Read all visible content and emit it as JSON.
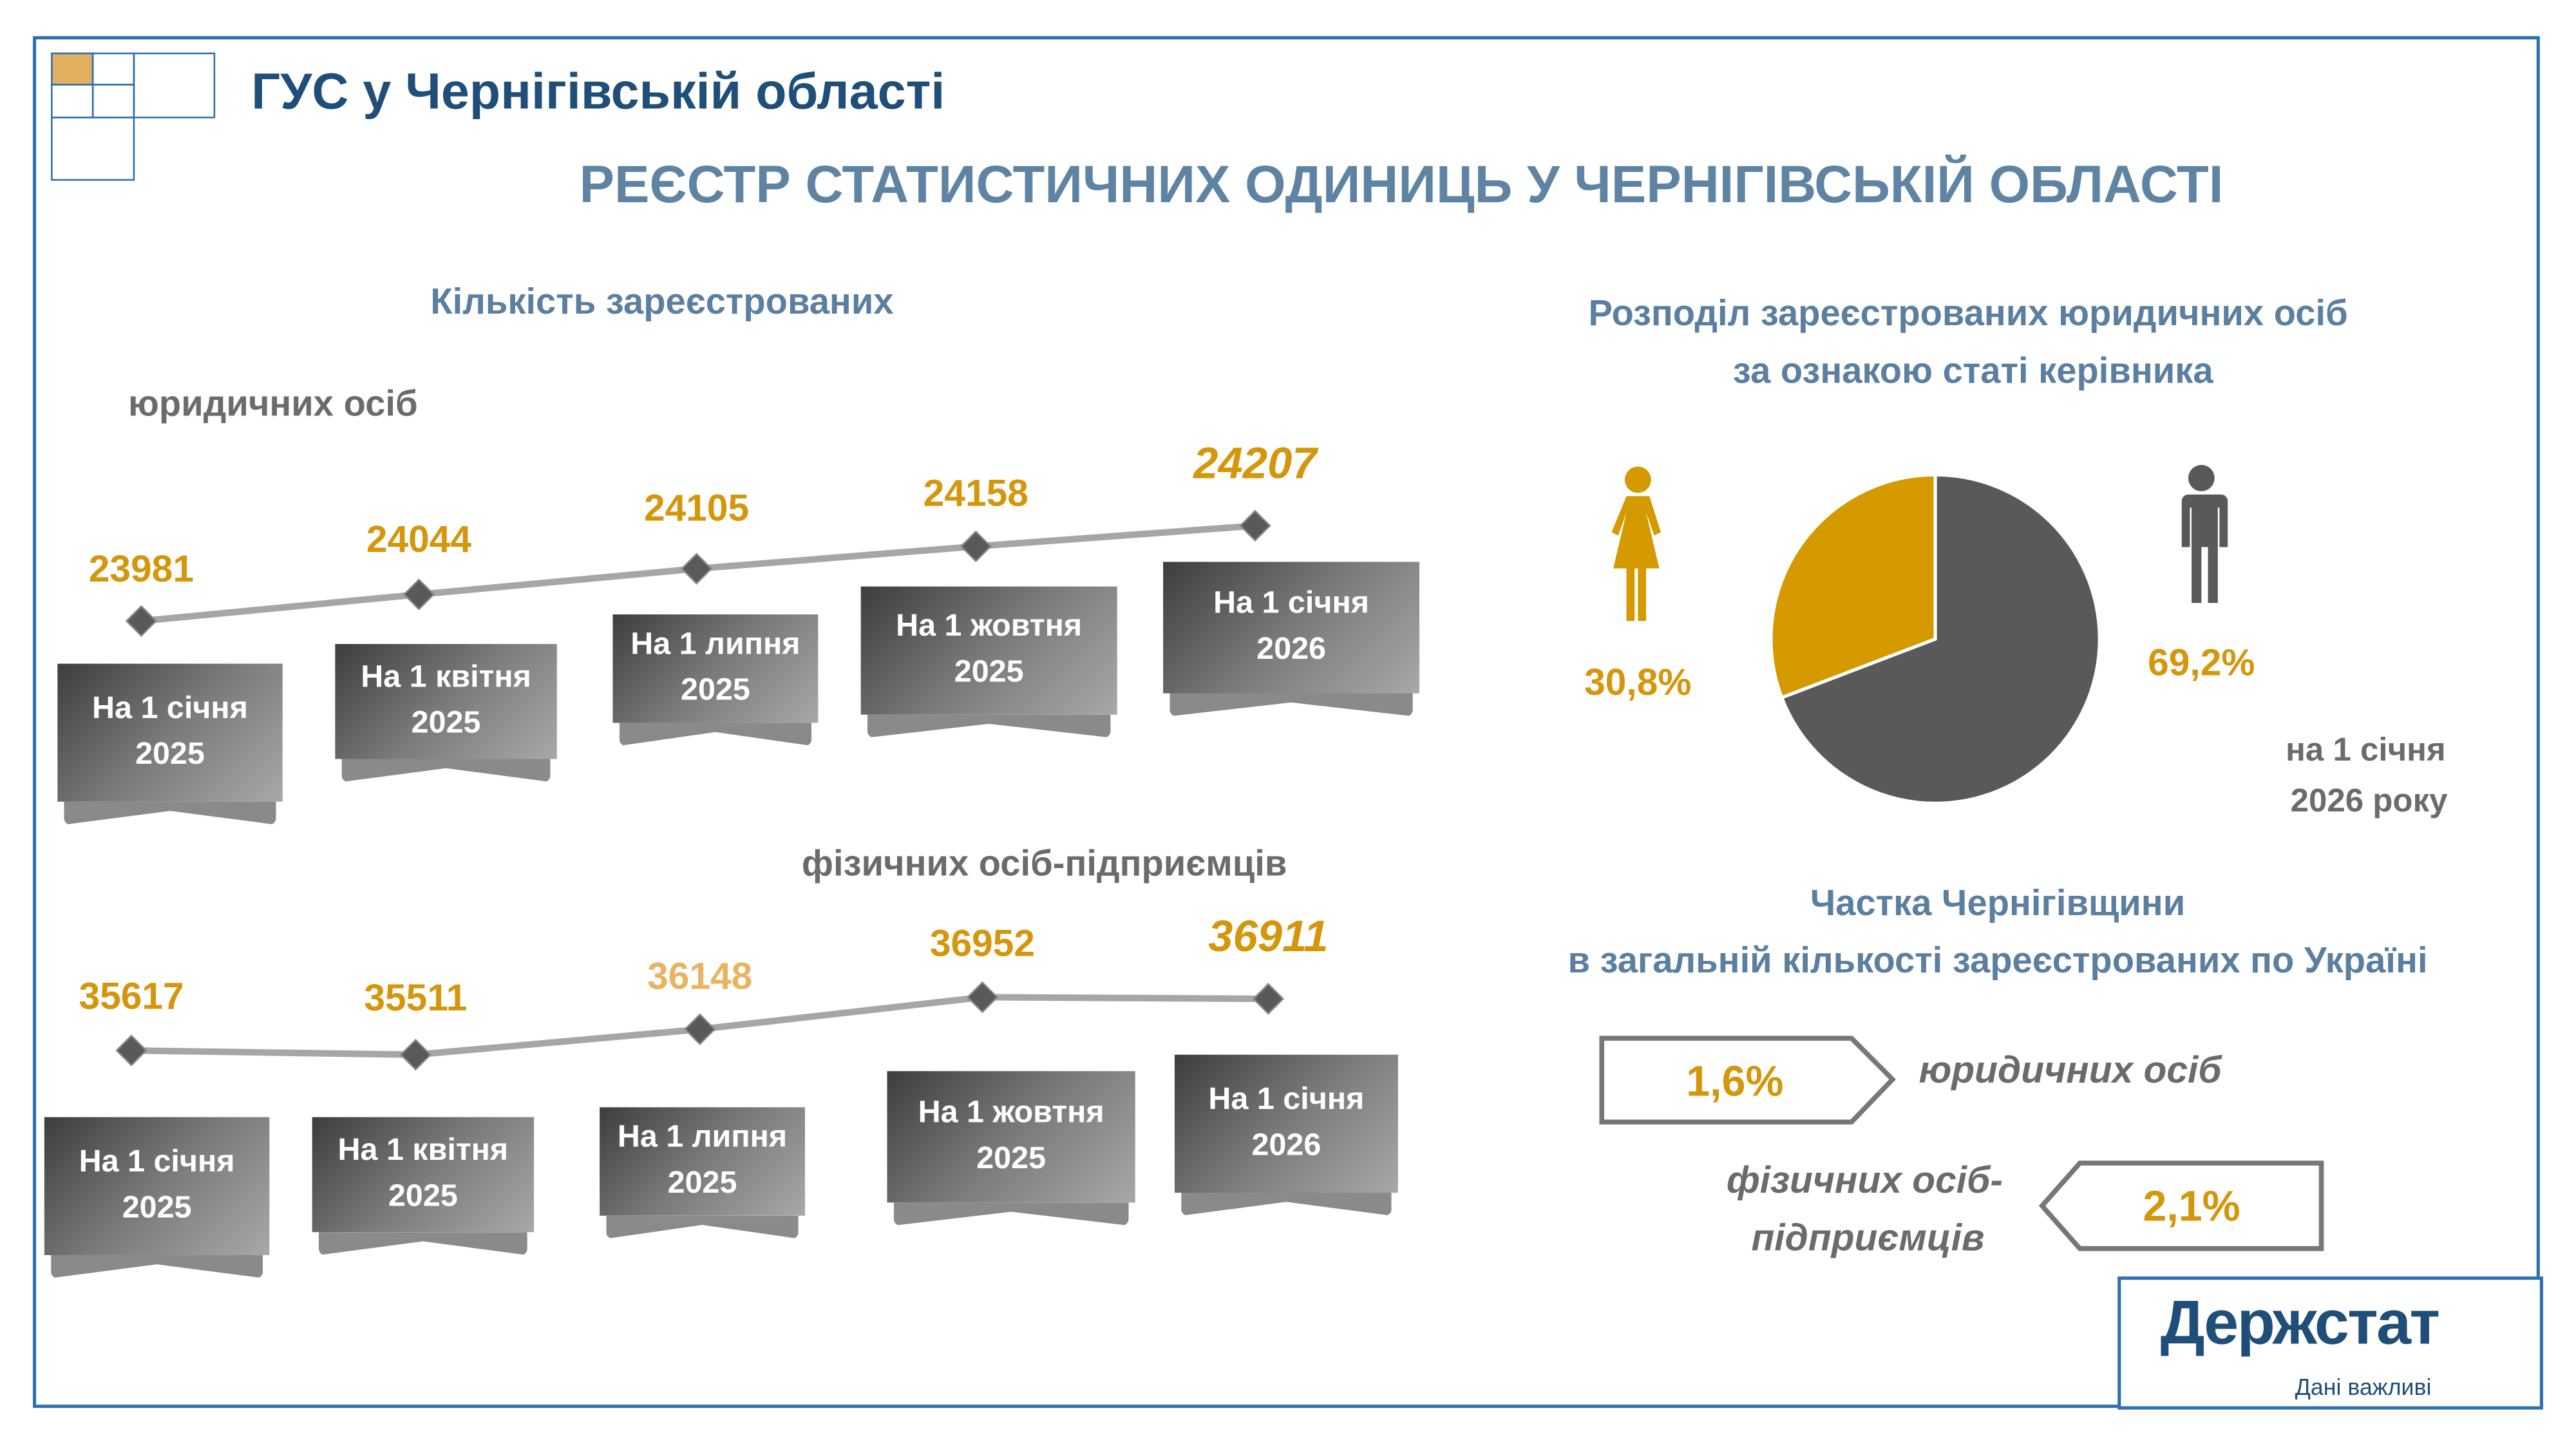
{
  "header": {
    "org_title": "ГУС у Чернігівській області",
    "main_title": "РЕЄСТР СТАТИСТИЧНИХ ОДИНИЦЬ У ЧЕРНІГІВСЬКІЙ ОБЛАСТІ"
  },
  "left": {
    "heading": "Кількість зареєстрованих",
    "legal_label": "юридичних осіб",
    "fop_label": "фізичних осіб-підприємців"
  },
  "chart_data": [
    {
      "type": "line",
      "title": "юридичних осіб",
      "categories": [
        "На 1 січня 2025",
        "На 1 квітня 2025",
        "На 1 липня 2025",
        "На 1 жовтня 2025",
        "На 1 січня 2026"
      ],
      "values": [
        23981,
        24044,
        24105,
        24158,
        24207
      ],
      "value_labels": [
        "23981",
        "24044",
        "24105",
        "24158",
        "24207"
      ],
      "date_lines": [
        [
          "На 1 січня",
          "2025"
        ],
        [
          "На 1 квітня",
          "2025"
        ],
        [
          "На 1 липня",
          "2025"
        ],
        [
          "На 1 жовтня",
          "2025"
        ],
        [
          "На 1 січня",
          "2026"
        ]
      ]
    },
    {
      "type": "line",
      "title": "фізичних осіб-підприємців",
      "categories": [
        "На 1 січня 2025",
        "На 1 квітня 2025",
        "На 1 липня 2025",
        "На 1 жовтня 2025",
        "На 1 січня 2026"
      ],
      "values": [
        35617,
        35511,
        36148,
        36952,
        36911
      ],
      "value_labels": [
        "35617",
        "35511",
        "36148",
        "36952",
        "36911"
      ],
      "date_lines": [
        [
          "На 1 січня",
          "2025"
        ],
        [
          "На 1 квітня",
          "2025"
        ],
        [
          "На 1 липня",
          "2025"
        ],
        [
          "На 1 жовтня",
          "2025"
        ],
        [
          "На 1 січня",
          "2026"
        ]
      ]
    },
    {
      "type": "pie",
      "title": "Розподіл зареєстрованих юридичних осіб за ознакою статі керівника",
      "slices": [
        {
          "name": "жінки",
          "value": 30.8,
          "label": "30,8%",
          "color": "#d49a00",
          "icon": "woman-icon"
        },
        {
          "name": "чоловіки",
          "value": 69.2,
          "label": "69,2%",
          "color": "#595959",
          "icon": "man-icon"
        }
      ]
    }
  ],
  "pie": {
    "title_line1": "Розподіл зареєстрованих юридичних осіб",
    "title_line2": "за ознакою статі керівника",
    "date_line1": "на 1 січня",
    "date_line2": "2026 року"
  },
  "share": {
    "title_line1": "Частка Чернігівщини",
    "title_line2": "в загальній кількості зареєстрованих по Україні",
    "legal_value": "1,6%",
    "legal_label": "юридичних осіб",
    "fop_value": "2,1%",
    "fop_label_line1": "фізичних осіб-",
    "fop_label_line2": "підприємців"
  },
  "logo": {
    "name": "Держстат",
    "tagline": "Дані важливі"
  },
  "colors": {
    "accent": "#d4960b",
    "frame": "#2e6fb0",
    "title": "#1f4e79",
    "subtitle": "#5b7fa0"
  }
}
